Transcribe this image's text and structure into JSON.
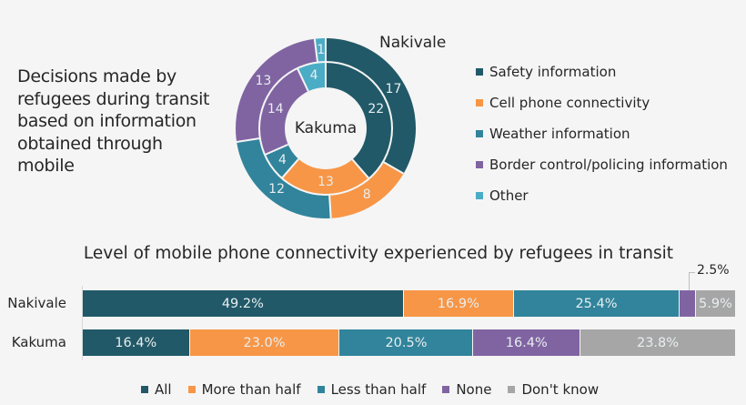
{
  "side_title": {
    "lines": [
      "Decisions made by",
      "refugees during transit",
      "based on information",
      "obtained through",
      "mobile"
    ]
  },
  "donut": {
    "outer_name": "Nakivale",
    "inner_name": "Kakuma",
    "categories": [
      "Safety information",
      "Cell phone connectivity",
      "Weather information",
      "Border control/policing information",
      "Other"
    ],
    "colors": [
      "#215968",
      "#f79646",
      "#31849b",
      "#8064a2",
      "#4bacc6"
    ],
    "outer_values": [
      "17",
      "8",
      "12",
      "13",
      "1"
    ],
    "inner_values": [
      "22",
      "13",
      "4",
      "14",
      "4"
    ]
  },
  "bar": {
    "title": "Level of mobile phone connectivity experienced by refugees in transit",
    "rows": [
      {
        "label": "Nakivale",
        "values": [
          "49.2%",
          "16.9%",
          "25.4%",
          "",
          "5.9%"
        ]
      },
      {
        "label": "Kakuma",
        "values": [
          "16.4%",
          "23.0%",
          "20.5%",
          "16.4%",
          "23.8%"
        ]
      }
    ],
    "callout": "2.5%",
    "legend": [
      "All",
      "More than half",
      "Less than half",
      "None",
      "Don't know"
    ],
    "colors": [
      "#215968",
      "#f79646",
      "#31849b",
      "#8064a2",
      "#a6a6a6"
    ]
  },
  "chart_data": [
    {
      "type": "pie",
      "subtype": "doughnut",
      "title": "Decisions made by refugees during transit based on information obtained through mobile",
      "categories": [
        "Safety information",
        "Cell phone connectivity",
        "Weather information",
        "Border control/policing information",
        "Other"
      ],
      "series": [
        {
          "name": "Nakivale",
          "ring": "outer",
          "values": [
            17,
            8,
            12,
            13,
            1
          ]
        },
        {
          "name": "Kakuma",
          "ring": "inner",
          "values": [
            22,
            13,
            4,
            14,
            4
          ]
        }
      ],
      "legend_position": "right"
    },
    {
      "type": "bar",
      "orientation": "horizontal",
      "stacked": "100%",
      "title": "Level of mobile phone connectivity experienced by refugees in transit",
      "categories": [
        "Nakivale",
        "Kakuma"
      ],
      "series": [
        {
          "name": "All",
          "values": [
            49.2,
            16.4
          ]
        },
        {
          "name": "More than half",
          "values": [
            16.9,
            23.0
          ]
        },
        {
          "name": "Less than half",
          "values": [
            25.4,
            20.5
          ]
        },
        {
          "name": "None",
          "values": [
            2.5,
            16.4
          ]
        },
        {
          "name": "Don't know",
          "values": [
            5.9,
            23.8
          ]
        }
      ],
      "xlabel": "",
      "ylabel": "",
      "xlim": [
        0,
        100
      ],
      "grid": false,
      "legend_position": "bottom",
      "annotations": [
        "2.5% (Nakivale, None) callout"
      ]
    }
  ]
}
